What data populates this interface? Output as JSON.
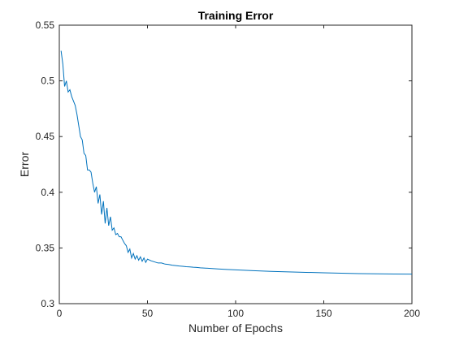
{
  "chart_data": {
    "type": "line",
    "title": "Training Error",
    "xlabel": "Number of Epochs",
    "ylabel": "Error",
    "xlim": [
      0,
      200
    ],
    "ylim": [
      0.3,
      0.55
    ],
    "xticks": [
      0,
      50,
      100,
      150,
      200
    ],
    "xtick_labels": [
      "0",
      "50",
      "100",
      "150",
      "200"
    ],
    "yticks": [
      0.3,
      0.35,
      0.4,
      0.45,
      0.5,
      0.55
    ],
    "ytick_labels": [
      "0.3",
      "0.35",
      "0.4",
      "0.45",
      "0.5",
      "0.55"
    ],
    "grid": false,
    "line_color": "#0072BD",
    "series": [
      {
        "x": [
          1,
          2,
          3,
          4,
          5,
          6,
          7,
          8,
          9,
          10,
          11,
          12,
          13,
          14,
          15,
          16,
          17,
          18,
          19,
          20,
          21,
          22,
          23,
          24,
          25,
          26,
          27,
          28,
          29,
          30,
          31,
          32,
          33,
          34,
          35,
          36,
          37,
          38,
          39,
          40,
          41,
          42,
          43,
          44,
          45,
          46,
          47,
          48,
          49,
          50,
          52,
          54,
          56,
          58,
          60,
          62,
          64,
          66,
          68,
          70,
          72,
          74,
          76,
          78,
          80,
          85,
          90,
          95,
          100,
          110,
          120,
          130,
          140,
          150,
          160,
          170,
          180,
          190,
          200
        ],
        "y": [
          0.527,
          0.515,
          0.495,
          0.5,
          0.49,
          0.492,
          0.486,
          0.482,
          0.478,
          0.47,
          0.46,
          0.45,
          0.447,
          0.435,
          0.433,
          0.42,
          0.42,
          0.418,
          0.408,
          0.4,
          0.405,
          0.39,
          0.398,
          0.38,
          0.392,
          0.372,
          0.386,
          0.37,
          0.378,
          0.366,
          0.368,
          0.362,
          0.363,
          0.36,
          0.36,
          0.357,
          0.354,
          0.352,
          0.346,
          0.349,
          0.341,
          0.345,
          0.34,
          0.343,
          0.339,
          0.342,
          0.338,
          0.341,
          0.337,
          0.34,
          0.3385,
          0.3375,
          0.3365,
          0.3365,
          0.3355,
          0.3352,
          0.3345,
          0.3342,
          0.3338,
          0.3335,
          0.3332,
          0.333,
          0.3327,
          0.3325,
          0.3322,
          0.3317,
          0.3312,
          0.3307,
          0.3303,
          0.3296,
          0.329,
          0.3285,
          0.3281,
          0.3277,
          0.3273,
          0.327,
          0.3268,
          0.3266,
          0.3265
        ]
      }
    ]
  }
}
